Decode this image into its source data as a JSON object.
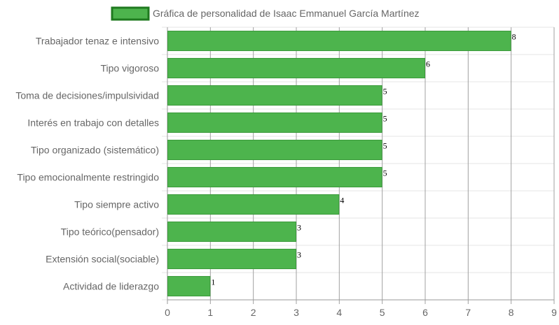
{
  "chart_data": {
    "type": "bar",
    "orientation": "horizontal",
    "categories": [
      "Trabajador tenaz e intensivo",
      "Tipo vigoroso",
      "Toma de decisiones/impulsividad",
      "Interés en trabajo con detalles",
      "Tipo organizado (sistemático)",
      "Tipo emocionalmente restringido",
      "Tipo siempre activo",
      "Tipo teórico(pensador)",
      "Extensión social(sociable)",
      "Actividad de liderazgo"
    ],
    "series": [
      {
        "name": "Gráfica de personalidad de Isaac Emmanuel García Martínez",
        "values": [
          8,
          6,
          5,
          5,
          5,
          5,
          4,
          3,
          3,
          1
        ]
      }
    ],
    "xlim": [
      0,
      9
    ],
    "xticks": [
      "0",
      "1",
      "2",
      "3",
      "4",
      "5",
      "6",
      "7",
      "8",
      "9"
    ],
    "grid": true,
    "legend_position": "top",
    "colors": {
      "bar_fill": "#4db44d",
      "bar_border": "#3a9a3a",
      "legend_border": "#1f7a1f",
      "grid": "#e6e6e6",
      "axis": "#999999"
    }
  }
}
